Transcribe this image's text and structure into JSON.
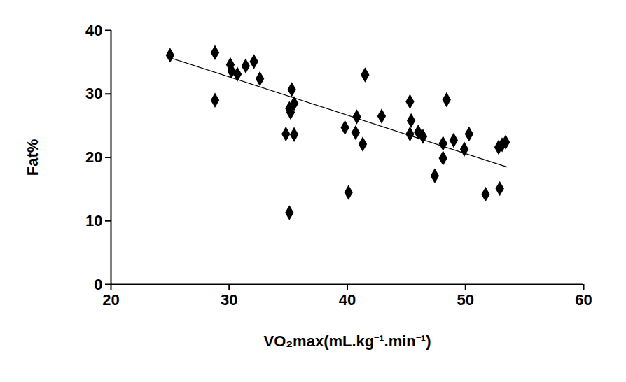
{
  "chart_data": {
    "type": "scatter",
    "x_label": "VO₂max(mL.kg⁻¹.min⁻¹)",
    "y_label": "Fat%",
    "xlim": [
      20,
      60
    ],
    "xticks": [
      20,
      30,
      40,
      50,
      60
    ],
    "ylim": [
      0,
      40
    ],
    "yticks": [
      0,
      10,
      20,
      30,
      40
    ],
    "grid": false,
    "series": [
      {
        "type": "scatter",
        "marker": "diamond",
        "color": "#000000",
        "x": [
          25.0,
          28.8,
          28.8,
          30.1,
          30.2,
          30.7,
          31.4,
          32.1,
          32.6,
          35.3,
          35.1,
          35.2,
          35.5,
          34.8,
          35.5,
          35.1,
          39.8,
          40.1,
          40.8,
          40.7,
          41.3,
          41.5,
          42.9,
          45.3,
          45.4,
          45.3,
          46.0,
          46.4,
          47.4,
          48.1,
          48.1,
          48.4,
          49.0,
          49.9,
          50.3,
          51.7,
          52.8,
          52.9,
          53.1,
          53.4
        ],
        "values": [
          36.1,
          36.5,
          29.0,
          34.6,
          33.6,
          33.1,
          34.4,
          35.1,
          32.4,
          30.7,
          27.7,
          27.1,
          28.5,
          23.7,
          23.6,
          11.3,
          24.7,
          14.5,
          26.4,
          23.9,
          22.1,
          33.0,
          26.5,
          28.8,
          25.8,
          23.7,
          24.0,
          23.3,
          17.1,
          22.2,
          19.9,
          29.1,
          22.7,
          21.3,
          23.7,
          14.2,
          21.6,
          15.1,
          22.0,
          22.4
        ]
      },
      {
        "type": "line",
        "line_style": "solid",
        "color": "#000000",
        "x": [
          25.0,
          53.5
        ],
        "values": [
          35.7,
          18.5
        ]
      }
    ]
  }
}
